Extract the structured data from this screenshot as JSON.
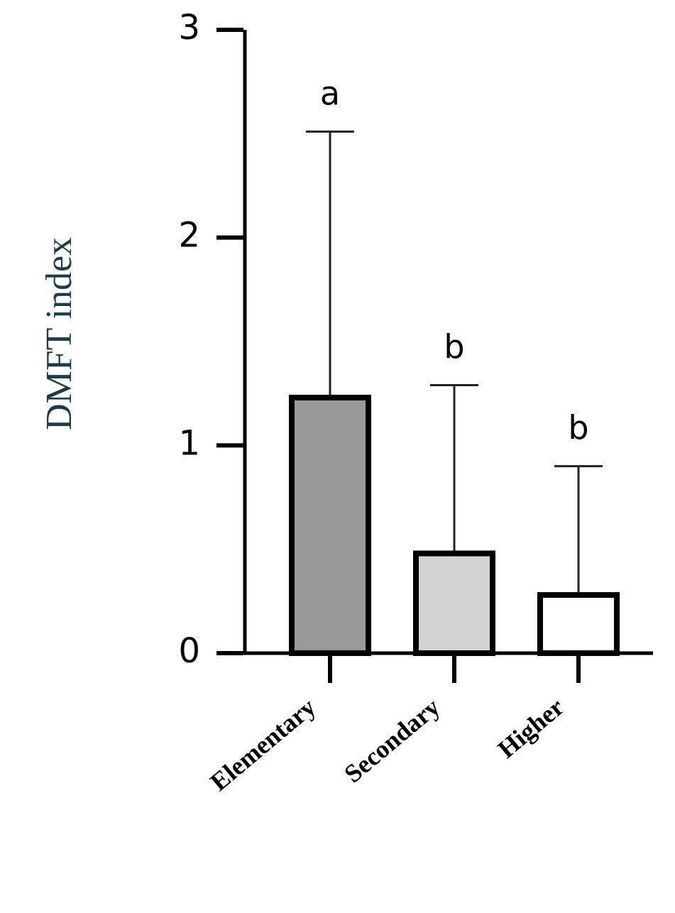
{
  "chart_data": {
    "type": "bar",
    "y_label": "DMFT index",
    "categories": [
      "Elementary",
      "Secondary",
      "Higher"
    ],
    "values": [
      1.23,
      0.48,
      0.28
    ],
    "errors": [
      1.28,
      0.81,
      0.62
    ],
    "colors": [
      "#999999",
      "#d3d3d3",
      "#ffffff"
    ],
    "letters": [
      "a",
      "b",
      "b"
    ],
    "ylim": [
      0,
      3
    ],
    "yticks": [
      0,
      1,
      2,
      3
    ],
    "grid": false
  }
}
